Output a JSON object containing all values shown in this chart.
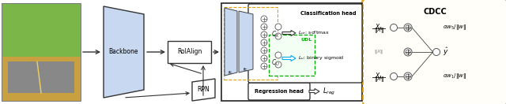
{
  "fig_width": 6.4,
  "fig_height": 1.32,
  "dpi": 100,
  "bg_color": "#ffffff",
  "backbone_label": "Backbone",
  "roialign_label": "RoIAlign",
  "rpn_label": "RPN",
  "reg_head_label": "Regression head",
  "cls_head_label": "Classification head",
  "udl_label": "UDL",
  "cdcc_label": "CDCC",
  "arrow_color": "#333333",
  "box_color": "#333333",
  "backbone_fill": "#c8d8f0",
  "fc_fill": "#c8d8f0",
  "cdcc_border": "#e8a000",
  "cdcc_fill": "#fffdf0",
  "orange_color": "#e8a000",
  "green_color": "#00aa00",
  "cyan_color": "#00aaee",
  "nn_outline_color": "#e8a000",
  "nn_outline_style": "--"
}
